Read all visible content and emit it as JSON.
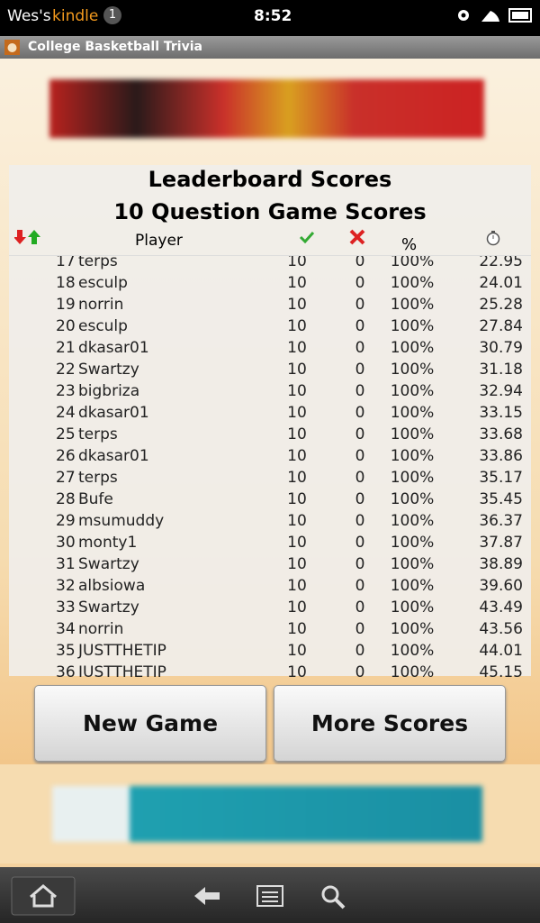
{
  "status_bar": {
    "owner": "Wes's",
    "device": "kindle",
    "notifications": "1",
    "time": "8:52"
  },
  "app_title": "College Basketball Trivia",
  "leaderboard": {
    "title": "Leaderboard Scores",
    "subtitle": "10 Question Game Scores",
    "header": {
      "player": "Player",
      "percent": "%"
    },
    "rows": [
      [
        "17",
        "terps",
        "10",
        "0",
        "100%",
        "22.95"
      ],
      [
        "18",
        "esculp",
        "10",
        "0",
        "100%",
        "24.01"
      ],
      [
        "19",
        "norrin",
        "10",
        "0",
        "100%",
        "25.28"
      ],
      [
        "20",
        "esculp",
        "10",
        "0",
        "100%",
        "27.84"
      ],
      [
        "21",
        "dkasar01",
        "10",
        "0",
        "100%",
        "30.79"
      ],
      [
        "22",
        "Swartzy",
        "10",
        "0",
        "100%",
        "31.18"
      ],
      [
        "23",
        "bigbriza",
        "10",
        "0",
        "100%",
        "32.94"
      ],
      [
        "24",
        "dkasar01",
        "10",
        "0",
        "100%",
        "33.15"
      ],
      [
        "25",
        "terps",
        "10",
        "0",
        "100%",
        "33.68"
      ],
      [
        "26",
        "dkasar01",
        "10",
        "0",
        "100%",
        "33.86"
      ],
      [
        "27",
        "terps",
        "10",
        "0",
        "100%",
        "35.17"
      ],
      [
        "28",
        "Bufe",
        "10",
        "0",
        "100%",
        "35.45"
      ],
      [
        "29",
        "msumuddy",
        "10",
        "0",
        "100%",
        "36.37"
      ],
      [
        "30",
        "monty1",
        "10",
        "0",
        "100%",
        "37.87"
      ],
      [
        "31",
        "Swartzy",
        "10",
        "0",
        "100%",
        "38.89"
      ],
      [
        "32",
        "albsiowa",
        "10",
        "0",
        "100%",
        "39.60"
      ],
      [
        "33",
        "Swartzy",
        "10",
        "0",
        "100%",
        "43.49"
      ],
      [
        "34",
        "norrin",
        "10",
        "0",
        "100%",
        "43.56"
      ],
      [
        "35",
        "JUSTTHETIP",
        "10",
        "0",
        "100%",
        "44.01"
      ],
      [
        "36",
        "JUSTTHETIP",
        "10",
        "0",
        "100%",
        "45.15"
      ]
    ]
  },
  "buttons": {
    "new_game": "New Game",
    "more_scores": "More Scores"
  }
}
